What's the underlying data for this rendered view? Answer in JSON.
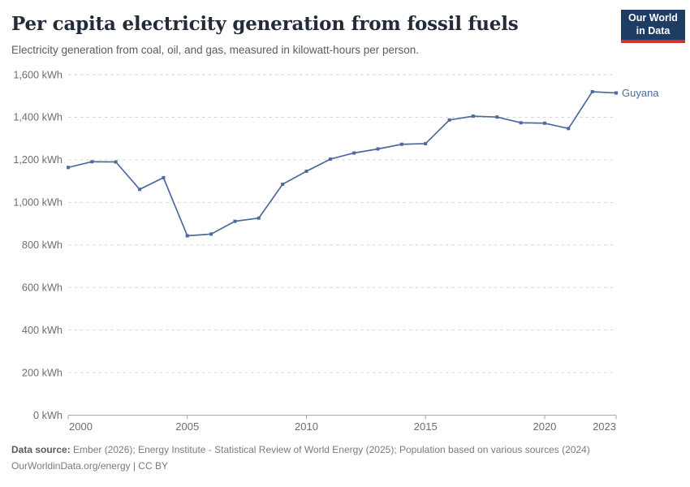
{
  "header": {
    "title": "Per capita electricity generation from fossil fuels",
    "subtitle": "Electricity generation from coal, oil, and gas, measured in kilowatt-hours per person.",
    "logo": {
      "line1": "Our World",
      "line2": "in Data",
      "bg_color": "#1d3d63",
      "accent_color": "#cf3330"
    }
  },
  "chart_data": {
    "type": "line",
    "title": "Per capita electricity generation from fossil fuels",
    "xlabel": "",
    "ylabel": "",
    "x": [
      2000,
      2001,
      2002,
      2003,
      2004,
      2005,
      2006,
      2007,
      2008,
      2009,
      2010,
      2011,
      2012,
      2013,
      2014,
      2015,
      2016,
      2017,
      2018,
      2019,
      2020,
      2021,
      2022,
      2023
    ],
    "series": [
      {
        "name": "Guyana",
        "color": "#4C6A9C",
        "values": [
          1164,
          1191,
          1190,
          1061,
          1116,
          843,
          851,
          911,
          926,
          1085,
          1146,
          1203,
          1232,
          1251,
          1273,
          1276,
          1387,
          1405,
          1401,
          1374,
          1372,
          1347,
          1520,
          1514
        ]
      }
    ],
    "xlim": [
      2000,
      2023
    ],
    "ylim": [
      0,
      1600
    ],
    "x_ticks": [
      2000,
      2005,
      2010,
      2015,
      2020,
      2023
    ],
    "y_ticks": [
      0,
      200,
      400,
      600,
      800,
      1000,
      1200,
      1400,
      1600
    ],
    "y_tick_suffix": " kWh",
    "grid": "horizontal-dashed",
    "legend_position": "end-of-line-label",
    "colors": {
      "gridline": "#d6d6d6",
      "axis_line": "#a8a8a8",
      "tick_label": "#6b6e73"
    }
  },
  "footer": {
    "datasource_label": "Data source:",
    "datasource_text": " Ember (2026); Energy Institute - Statistical Review of World Energy (2025); Population based on various sources (2024)",
    "license_line": "OurWorldinData.org/energy | CC BY"
  }
}
